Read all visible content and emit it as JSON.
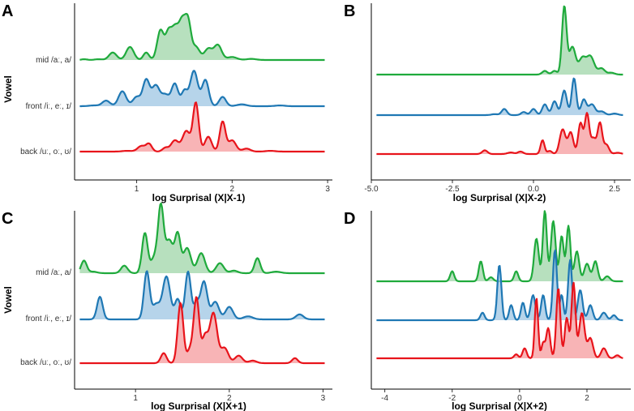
{
  "figure": {
    "colors": {
      "green": "#1faa3c",
      "blue": "#1f78b4",
      "red": "#e8141b",
      "green_fill": "#9fd6a8",
      "blue_fill": "#9ec5e3",
      "red_fill": "#f59b9e"
    },
    "categories": [
      "mid /aː, a/",
      "front /iː, eː, ɪ/",
      "back /uː, oː, ʊ/"
    ]
  },
  "chart_data": [
    {
      "type": "area",
      "panel": "A",
      "xlabel": "log Surprisal (X|X-1)",
      "ylabel": "Vowel",
      "show_categories": true,
      "xlim": [
        0.35,
        3.05
      ],
      "xticks": [
        1,
        2,
        3
      ],
      "xtick_labels": [
        "1",
        "2",
        "3"
      ],
      "series": [
        {
          "name": "mid /aː, a/",
          "peaks": [
            [
              0.45,
              0.03,
              0.02
            ],
            [
              0.6,
              0.04,
              0.02
            ],
            [
              0.75,
              0.04,
              0.2
            ],
            [
              0.93,
              0.04,
              0.35
            ],
            [
              1.1,
              0.03,
              0.2
            ],
            [
              1.25,
              0.035,
              0.8
            ],
            [
              1.33,
              0.03,
              0.6
            ],
            [
              1.4,
              0.04,
              0.85
            ],
            [
              1.48,
              0.035,
              0.95
            ],
            [
              1.54,
              0.03,
              0.9
            ],
            [
              1.62,
              0.04,
              0.35
            ],
            [
              1.75,
              0.04,
              0.3
            ],
            [
              1.85,
              0.04,
              0.4
            ],
            [
              2.0,
              0.05,
              0.08
            ],
            [
              2.2,
              0.05,
              0.03
            ]
          ]
        },
        {
          "name": "front /iː, eː, ɪ/",
          "peaks": [
            [
              0.55,
              0.05,
              0.02
            ],
            [
              0.68,
              0.04,
              0.15
            ],
            [
              0.85,
              0.04,
              0.4
            ],
            [
              1.0,
              0.04,
              0.25
            ],
            [
              1.1,
              0.035,
              0.7
            ],
            [
              1.2,
              0.04,
              0.55
            ],
            [
              1.3,
              0.04,
              0.3
            ],
            [
              1.4,
              0.035,
              0.6
            ],
            [
              1.5,
              0.03,
              0.4
            ],
            [
              1.6,
              0.04,
              0.95
            ],
            [
              1.72,
              0.035,
              0.7
            ],
            [
              1.9,
              0.035,
              0.25
            ],
            [
              2.1,
              0.05,
              0.05
            ],
            [
              2.5,
              0.05,
              0.02
            ]
          ]
        },
        {
          "name": "back /uː, oː, ʊ/",
          "peaks": [
            [
              0.9,
              0.05,
              0.02
            ],
            [
              1.05,
              0.04,
              0.15
            ],
            [
              1.13,
              0.03,
              0.2
            ],
            [
              1.3,
              0.03,
              0.1
            ],
            [
              1.4,
              0.04,
              0.3
            ],
            [
              1.52,
              0.04,
              0.55
            ],
            [
              1.62,
              0.03,
              1.3
            ],
            [
              1.75,
              0.035,
              0.4
            ],
            [
              1.9,
              0.03,
              0.8
            ],
            [
              2.0,
              0.04,
              0.3
            ],
            [
              2.15,
              0.04,
              0.08
            ],
            [
              2.4,
              0.05,
              0.02
            ]
          ]
        }
      ]
    },
    {
      "type": "area",
      "panel": "B",
      "xlabel": "log Surprisal (X|X-2)",
      "ylabel": "",
      "show_categories": false,
      "xlim": [
        -5.0,
        3.0
      ],
      "xticks": [
        -5.0,
        -2.5,
        0.0,
        2.5
      ],
      "xtick_labels": [
        "-5.0",
        "-2.5",
        "0.0",
        "2.5"
      ],
      "series": [
        {
          "name": "mid /aː, a/",
          "peaks": [
            [
              0.35,
              0.08,
              0.12
            ],
            [
              0.65,
              0.08,
              0.12
            ],
            [
              0.95,
              0.07,
              2.2
            ],
            [
              1.2,
              0.1,
              0.9
            ],
            [
              1.5,
              0.1,
              0.5
            ],
            [
              1.75,
              0.12,
              0.6
            ],
            [
              2.1,
              0.1,
              0.2
            ],
            [
              2.4,
              0.1,
              0.06
            ]
          ]
        },
        {
          "name": "front /iː, eː, ɪ/",
          "peaks": [
            [
              -1.2,
              0.1,
              0.03
            ],
            [
              -0.9,
              0.08,
              0.2
            ],
            [
              -0.3,
              0.08,
              0.1
            ],
            [
              0.0,
              0.08,
              0.2
            ],
            [
              0.35,
              0.08,
              0.35
            ],
            [
              0.65,
              0.08,
              0.45
            ],
            [
              0.95,
              0.08,
              0.8
            ],
            [
              1.25,
              0.07,
              1.2
            ],
            [
              1.55,
              0.08,
              0.5
            ],
            [
              1.8,
              0.1,
              0.35
            ],
            [
              2.1,
              0.1,
              0.12
            ],
            [
              2.5,
              0.1,
              0.05
            ]
          ]
        },
        {
          "name": "back /uː, oː, ʊ/",
          "peaks": [
            [
              -1.5,
              0.08,
              0.12
            ],
            [
              -0.7,
              0.1,
              0.05
            ],
            [
              -0.4,
              0.08,
              0.08
            ],
            [
              0.28,
              0.06,
              0.45
            ],
            [
              0.5,
              0.07,
              0.1
            ],
            [
              0.9,
              0.09,
              0.8
            ],
            [
              1.15,
              0.08,
              0.7
            ],
            [
              1.45,
              0.07,
              1.0
            ],
            [
              1.65,
              0.07,
              1.3
            ],
            [
              1.85,
              0.08,
              0.5
            ],
            [
              2.05,
              0.07,
              1.0
            ],
            [
              2.25,
              0.08,
              0.3
            ],
            [
              2.6,
              0.1,
              0.04
            ]
          ]
        }
      ]
    },
    {
      "type": "area",
      "panel": "C",
      "xlabel": "log Surprisal (X|X+1)",
      "ylabel": "Vowel",
      "show_categories": true,
      "xlim": [
        0.35,
        3.1
      ],
      "xticks": [
        1,
        2,
        3
      ],
      "xtick_labels": [
        "1",
        "2",
        "3"
      ],
      "series": [
        {
          "name": "mid /aː, a/",
          "peaks": [
            [
              0.45,
              0.03,
              0.25
            ],
            [
              0.55,
              0.04,
              0.03
            ],
            [
              0.88,
              0.035,
              0.15
            ],
            [
              1.1,
              0.03,
              0.8
            ],
            [
              1.2,
              0.035,
              0.3
            ],
            [
              1.27,
              0.03,
              1.3
            ],
            [
              1.36,
              0.04,
              0.65
            ],
            [
              1.45,
              0.03,
              0.75
            ],
            [
              1.55,
              0.04,
              0.5
            ],
            [
              1.7,
              0.04,
              0.4
            ],
            [
              1.9,
              0.04,
              0.2
            ],
            [
              2.05,
              0.04,
              0.05
            ],
            [
              2.3,
              0.03,
              0.3
            ],
            [
              2.5,
              0.05,
              0.03
            ]
          ]
        },
        {
          "name": "front /iː, eː, ɪ/",
          "peaks": [
            [
              0.62,
              0.03,
              0.45
            ],
            [
              1.12,
              0.03,
              0.95
            ],
            [
              1.22,
              0.04,
              0.3
            ],
            [
              1.33,
              0.04,
              0.85
            ],
            [
              1.45,
              0.03,
              0.4
            ],
            [
              1.56,
              0.03,
              0.95
            ],
            [
              1.65,
              0.03,
              0.3
            ],
            [
              1.73,
              0.035,
              0.75
            ],
            [
              1.85,
              0.04,
              0.35
            ],
            [
              2.0,
              0.04,
              0.25
            ],
            [
              2.2,
              0.05,
              0.06
            ],
            [
              2.75,
              0.04,
              0.1
            ]
          ]
        },
        {
          "name": "back /uː, oː, ʊ/",
          "peaks": [
            [
              1.3,
              0.03,
              0.2
            ],
            [
              1.48,
              0.03,
              1.2
            ],
            [
              1.58,
              0.03,
              0.25
            ],
            [
              1.65,
              0.03,
              1.3
            ],
            [
              1.74,
              0.03,
              0.5
            ],
            [
              1.83,
              0.04,
              1.0
            ],
            [
              1.95,
              0.04,
              0.3
            ],
            [
              2.1,
              0.04,
              0.15
            ],
            [
              2.25,
              0.04,
              0.05
            ],
            [
              2.7,
              0.03,
              0.1
            ]
          ]
        }
      ]
    },
    {
      "type": "area",
      "panel": "D",
      "xlabel": "log Surprisal (X|X+2)",
      "ylabel": "",
      "show_categories": false,
      "xlim": [
        -4.4,
        3.3
      ],
      "xticks": [
        -4,
        -2,
        0,
        2
      ],
      "xtick_labels": [
        "-4",
        "-2",
        "0",
        "2"
      ],
      "series": [
        {
          "name": "mid /aː, a/",
          "peaks": [
            [
              -2.0,
              0.06,
              0.2
            ],
            [
              -1.15,
              0.06,
              0.4
            ],
            [
              -0.85,
              0.07,
              0.08
            ],
            [
              -0.1,
              0.06,
              0.2
            ],
            [
              0.5,
              0.07,
              0.85
            ],
            [
              0.75,
              0.06,
              1.4
            ],
            [
              1.0,
              0.07,
              1.2
            ],
            [
              1.25,
              0.06,
              0.9
            ],
            [
              1.45,
              0.06,
              1.1
            ],
            [
              1.7,
              0.07,
              0.6
            ],
            [
              2.0,
              0.08,
              0.35
            ],
            [
              2.25,
              0.07,
              0.4
            ],
            [
              2.6,
              0.08,
              0.1
            ]
          ]
        },
        {
          "name": "front /iː, eː, ɪ/",
          "peaks": [
            [
              -1.1,
              0.06,
              0.15
            ],
            [
              -0.6,
              0.06,
              1.1
            ],
            [
              -0.25,
              0.06,
              0.3
            ],
            [
              0.1,
              0.06,
              0.35
            ],
            [
              0.4,
              0.07,
              0.5
            ],
            [
              0.7,
              0.06,
              0.5
            ],
            [
              1.05,
              0.06,
              1.4
            ],
            [
              1.25,
              0.05,
              0.5
            ],
            [
              1.5,
              0.06,
              1.2
            ],
            [
              1.8,
              0.07,
              0.6
            ],
            [
              2.1,
              0.07,
              0.3
            ],
            [
              2.5,
              0.08,
              0.15
            ],
            [
              2.8,
              0.07,
              0.1
            ]
          ]
        },
        {
          "name": "back /uː, oː, ʊ/",
          "peaks": [
            [
              -0.1,
              0.06,
              0.08
            ],
            [
              0.15,
              0.06,
              0.2
            ],
            [
              0.5,
              0.05,
              1.2
            ],
            [
              0.7,
              0.05,
              0.3
            ],
            [
              0.85,
              0.06,
              0.6
            ],
            [
              1.15,
              0.06,
              1.4
            ],
            [
              1.4,
              0.06,
              0.8
            ],
            [
              1.6,
              0.06,
              1.5
            ],
            [
              1.85,
              0.08,
              0.9
            ],
            [
              2.1,
              0.08,
              0.4
            ],
            [
              2.5,
              0.08,
              0.2
            ],
            [
              2.9,
              0.07,
              0.06
            ]
          ]
        }
      ]
    }
  ]
}
